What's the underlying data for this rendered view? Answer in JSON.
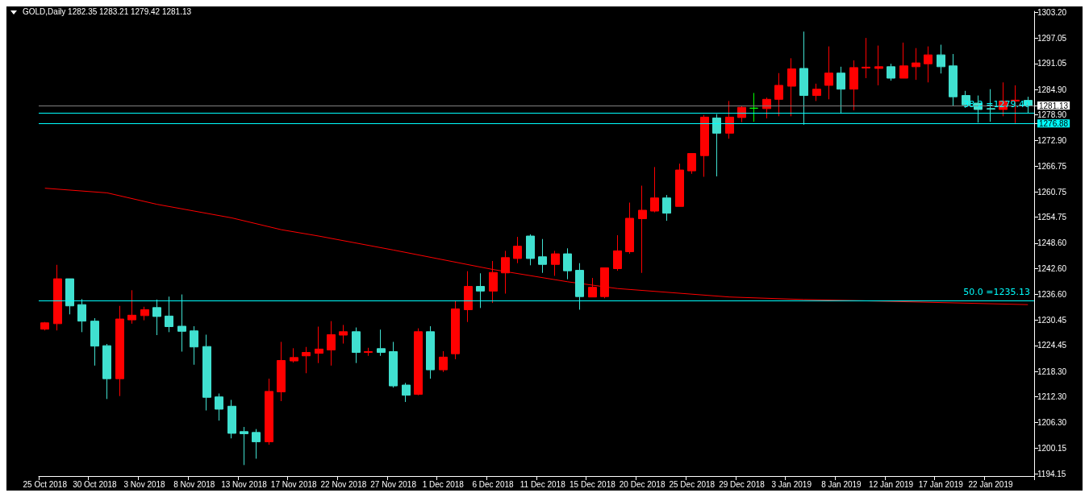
{
  "chart_data": {
    "type": "candlestick",
    "title": "GOLD,Daily 1282.35 1283.21 1279.42 1281.13",
    "categories": [
      "25 Oct 2018",
      null,
      null,
      null,
      "30 Oct 2018",
      null,
      null,
      null,
      "3 Nov 2018",
      null,
      null,
      null,
      "8 Nov 2018",
      null,
      null,
      null,
      "13 Nov 2018",
      null,
      null,
      null,
      "17 Nov 2018",
      null,
      null,
      null,
      "22 Nov 2018",
      null,
      null,
      null,
      "27 Nov 2018",
      null,
      null,
      null,
      "1 Dec 2018",
      null,
      null,
      null,
      "6 Dec 2018",
      null,
      null,
      null,
      "11 Dec 2018",
      null,
      null,
      null,
      "15 Dec 2018",
      null,
      null,
      null,
      "20 Dec 2018",
      null,
      null,
      null,
      "25 Dec 2018",
      null,
      null,
      null,
      "29 Dec 2018",
      null,
      null,
      null,
      "3 Jan 2019",
      null,
      null,
      null,
      "8 Jan 2019",
      null,
      null,
      null,
      "12 Jan 2019",
      null,
      null,
      null,
      "17 Jan 2019",
      null,
      null,
      null,
      "22 Jan 2019",
      null,
      null,
      null
    ],
    "series": [
      {
        "ohlc": [
          [
            1228.3,
            1230.0,
            1228.0,
            1229.8
          ],
          [
            1229.6,
            1243.5,
            1228.0,
            1240.2
          ],
          [
            1240.2,
            1240.2,
            1231.8,
            1233.8
          ],
          [
            1234.1,
            1235.4,
            1227.6,
            1230.2
          ],
          [
            1230.2,
            1230.9,
            1219.7,
            1224.3
          ],
          [
            1224.4,
            1224.8,
            1211.8,
            1216.6
          ],
          [
            1216.6,
            1233.8,
            1212.5,
            1230.7
          ],
          [
            1230.5,
            1237.5,
            1229.6,
            1231.6
          ],
          [
            1231.5,
            1233.6,
            1230.4,
            1232.9
          ],
          [
            1233.4,
            1235.3,
            1226.9,
            1231.3
          ],
          [
            1231.4,
            1236.0,
            1227.6,
            1228.9
          ],
          [
            1229.0,
            1236.5,
            1223.0,
            1227.8
          ],
          [
            1227.9,
            1229.0,
            1219.9,
            1224.1
          ],
          [
            1224.2,
            1227.0,
            1209.1,
            1212.2
          ],
          [
            1212.3,
            1213.1,
            1206.7,
            1209.4
          ],
          [
            1210.1,
            1211.6,
            1202.5,
            1203.7
          ],
          [
            1204.1,
            1205.2,
            1196.2,
            1203.6
          ],
          [
            1203.9,
            1204.7,
            1197.7,
            1201.7
          ],
          [
            1201.7,
            1216.6,
            1201.0,
            1213.6
          ],
          [
            1213.5,
            1225.3,
            1211.3,
            1220.9
          ],
          [
            1220.8,
            1223.8,
            1220.4,
            1221.6
          ],
          [
            1222.0,
            1224.1,
            1217.9,
            1222.8
          ],
          [
            1222.6,
            1228.9,
            1220.3,
            1223.6
          ],
          [
            1223.4,
            1230.2,
            1219.7,
            1227.0
          ],
          [
            1226.9,
            1229.3,
            1224.9,
            1227.7
          ],
          [
            1227.7,
            1228.7,
            1220.3,
            1222.8
          ],
          [
            1222.8,
            1223.9,
            1222.0,
            1223.0
          ],
          [
            1223.7,
            1228.2,
            1222.0,
            1222.8
          ],
          [
            1223.0,
            1225.3,
            1214.5,
            1214.9
          ],
          [
            1215.1,
            1215.6,
            1211.1,
            1212.7
          ],
          [
            1212.9,
            1228.5,
            1212.7,
            1227.7
          ],
          [
            1227.7,
            1229.0,
            1216.6,
            1218.7
          ],
          [
            1218.7,
            1223.1,
            1218.2,
            1221.7
          ],
          [
            1222.5,
            1234.9,
            1221.2,
            1233.1
          ],
          [
            1232.9,
            1242.0,
            1230.0,
            1238.4
          ],
          [
            1238.4,
            1241.5,
            1233.3,
            1237.3
          ],
          [
            1237.3,
            1244.4,
            1234.5,
            1241.7
          ],
          [
            1241.6,
            1246.8,
            1236.7,
            1245.2
          ],
          [
            1245.0,
            1250.1,
            1243.9,
            1247.9
          ],
          [
            1250.3,
            1250.7,
            1243.4,
            1245.0
          ],
          [
            1245.4,
            1249.6,
            1241.6,
            1243.6
          ],
          [
            1243.6,
            1246.8,
            1240.9,
            1246.1
          ],
          [
            1246.1,
            1247.4,
            1240.1,
            1242.1
          ],
          [
            1242.2,
            1243.9,
            1232.9,
            1236.0
          ],
          [
            1235.9,
            1240.4,
            1235.9,
            1238.2
          ],
          [
            1236.0,
            1242.8,
            1235.6,
            1242.8
          ],
          [
            1242.6,
            1250.5,
            1242.1,
            1246.8
          ],
          [
            1246.6,
            1258.2,
            1246.1,
            1254.5
          ],
          [
            1254.4,
            1262.2,
            1241.6,
            1256.4
          ],
          [
            1256.2,
            1266.6,
            1255.9,
            1259.3
          ],
          [
            1259.3,
            1260.0,
            1253.9,
            1255.7
          ],
          [
            1257.3,
            1267.4,
            1257.3,
            1265.9
          ],
          [
            1265.7,
            1269.9,
            1265.0,
            1269.8
          ],
          [
            1269.3,
            1278.9,
            1264.3,
            1278.4
          ],
          [
            1278.2,
            1279.1,
            1264.4,
            1274.6
          ],
          [
            1274.6,
            1282.2,
            1273.3,
            1278.4
          ],
          [
            1278.3,
            1281.1,
            1277.2,
            1280.7
          ],
          [
            1280.5,
            1284.1,
            1277.3,
            1280.5
          ],
          [
            1280.4,
            1283.0,
            1278.1,
            1282.6
          ],
          [
            1282.6,
            1288.8,
            1278.6,
            1285.9
          ],
          [
            1285.7,
            1292.3,
            1278.6,
            1289.8
          ],
          [
            1289.9,
            1298.6,
            1276.6,
            1283.5
          ],
          [
            1283.5,
            1286.3,
            1282.2,
            1285.0
          ],
          [
            1285.9,
            1295.1,
            1282.6,
            1288.8
          ],
          [
            1288.8,
            1290.3,
            1279.2,
            1285.0
          ],
          [
            1285.0,
            1291.8,
            1280.0,
            1290.1
          ],
          [
            1290.0,
            1297.1,
            1287.6,
            1290.2
          ],
          [
            1289.9,
            1295.3,
            1285.9,
            1290.3
          ],
          [
            1290.3,
            1291.0,
            1287.0,
            1287.6
          ],
          [
            1287.6,
            1296.0,
            1287.6,
            1290.5
          ],
          [
            1290.3,
            1294.7,
            1287.2,
            1291.2
          ],
          [
            1291.0,
            1295.1,
            1286.6,
            1293.1
          ],
          [
            1293.1,
            1295.5,
            1288.7,
            1290.3
          ],
          [
            1290.5,
            1293.3,
            1281.1,
            1283.2
          ],
          [
            1283.5,
            1284.6,
            1280.6,
            1281.3
          ],
          [
            1281.7,
            1283.5,
            1277.1,
            1280.2
          ],
          [
            1280.4,
            1285.0,
            1277.3,
            1280.3
          ],
          [
            1280.2,
            1286.6,
            1278.6,
            1282.2
          ],
          [
            1282.2,
            1285.9,
            1277.0,
            1282.4
          ],
          [
            1282.35,
            1283.21,
            1279.42,
            1281.13
          ]
        ],
        "colors": [
          "#ff0000",
          "#ff0000",
          "#40e0d0",
          "#40e0d0",
          "#40e0d0",
          "#40e0d0",
          "#ff0000",
          "#ff0000",
          "#ff0000",
          "#40e0d0",
          "#40e0d0",
          "#40e0d0",
          "#40e0d0",
          "#40e0d0",
          "#40e0d0",
          "#40e0d0",
          "#40e0d0",
          "#40e0d0",
          "#ff0000",
          "#ff0000",
          "#ff0000",
          "#ff0000",
          "#ff0000",
          "#ff0000",
          "#ff0000",
          "#40e0d0",
          "#ff0000",
          "#40e0d0",
          "#40e0d0",
          "#40e0d0",
          "#ff0000",
          "#40e0d0",
          "#ff0000",
          "#ff0000",
          "#ff0000",
          "#40e0d0",
          "#ff0000",
          "#ff0000",
          "#ff0000",
          "#40e0d0",
          "#40e0d0",
          "#ff0000",
          "#40e0d0",
          "#40e0d0",
          "#ff0000",
          "#ff0000",
          "#ff0000",
          "#ff0000",
          "#ff0000",
          "#ff0000",
          "#40e0d0",
          "#ff0000",
          "#ff0000",
          "#ff0000",
          "#40e0d0",
          "#ff0000",
          "#ff0000",
          "#00ff00",
          "#ff0000",
          "#ff0000",
          "#ff0000",
          "#40e0d0",
          "#ff0000",
          "#ff0000",
          "#40e0d0",
          "#ff0000",
          "#ff0000",
          "#ff0000",
          "#40e0d0",
          "#ff0000",
          "#ff0000",
          "#ff0000",
          "#40e0d0",
          "#40e0d0",
          "#40e0d0",
          "#40e0d0",
          "#40e0d0",
          "#ff0000",
          "#ff0000",
          "#40e0d0"
        ]
      },
      {
        "type": "line",
        "color": "#ff0000",
        "values": [
          1261.6,
          null,
          null,
          null,
          null,
          1260.5,
          null,
          null,
          null,
          1257.8,
          null,
          null,
          1256.2,
          null,
          null,
          1254.6,
          null,
          null,
          null,
          1251.8,
          null,
          null,
          1250.3,
          null,
          null,
          null,
          null,
          null,
          1247.0,
          null,
          null,
          null,
          null,
          null,
          null,
          null,
          1242.4,
          null,
          null,
          null,
          null,
          null,
          1239.5,
          null,
          null,
          null,
          1237.9,
          null,
          null,
          null,
          null,
          null,
          null,
          null,
          null,
          1235.9,
          null,
          null,
          null,
          null,
          null,
          1235.3,
          null,
          null,
          null,
          null,
          null,
          null,
          null,
          1234.8,
          null,
          null,
          null,
          null,
          null,
          null,
          null,
          null,
          null,
          1234.1
        ]
      }
    ],
    "ylim": [
      1193.6,
      1303.4
    ],
    "yticks": [
      {
        "value": 1194.15,
        "label": "1194.15"
      },
      {
        "value": 1200.15,
        "label": "1200.15"
      },
      {
        "value": 1206.3,
        "label": "1206.30"
      },
      {
        "value": 1212.3,
        "label": "1212.30"
      },
      {
        "value": 1218.3,
        "label": "1218.30"
      },
      {
        "value": 1224.45,
        "label": "1224.45"
      },
      {
        "value": 1230.45,
        "label": "1230.45"
      },
      {
        "value": 1236.6,
        "label": "1236.60"
      },
      {
        "value": 1242.6,
        "label": "1242.60"
      },
      {
        "value": 1248.6,
        "label": "1248.60"
      },
      {
        "value": 1254.75,
        "label": "1254.75"
      },
      {
        "value": 1260.75,
        "label": "1260.75"
      },
      {
        "value": 1266.75,
        "label": "1266.75"
      },
      {
        "value": 1272.9,
        "label": "1272.90"
      },
      {
        "value": 1276.88,
        "label": "1276.88"
      },
      {
        "value": 1278.9,
        "label": "1278.90"
      },
      {
        "value": 1281.13,
        "label": "1281.13"
      },
      {
        "value": 1284.9,
        "label": "1284.90"
      },
      {
        "value": 1291.05,
        "label": "1291.05"
      },
      {
        "value": 1297.05,
        "label": "1297.05"
      },
      {
        "value": 1303.2,
        "label": "1303.20"
      }
    ],
    "ref_lines": [
      {
        "axis": "y",
        "value": 1281.13,
        "label": null,
        "color": "#808080"
      },
      {
        "axis": "y",
        "value": 1279.4,
        "label": "38.2 =1279.40",
        "color": "#00ffff"
      },
      {
        "axis": "y",
        "value": 1276.88,
        "label": null,
        "color": "#00ffff"
      },
      {
        "axis": "y",
        "value": 1235.13,
        "label": "50.0 =1235.13",
        "color": "#00ffff"
      }
    ]
  }
}
